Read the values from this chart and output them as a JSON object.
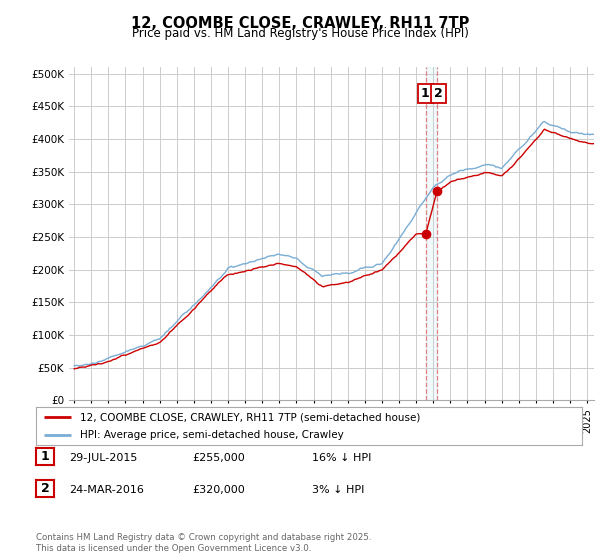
{
  "title": "12, COOMBE CLOSE, CRAWLEY, RH11 7TP",
  "subtitle": "Price paid vs. HM Land Registry's House Price Index (HPI)",
  "legend_line1": "12, COOMBE CLOSE, CRAWLEY, RH11 7TP (semi-detached house)",
  "legend_line2": "HPI: Average price, semi-detached house, Crawley",
  "sale1_date": "29-JUL-2015",
  "sale1_price": "£255,000",
  "sale1_hpi": "16% ↓ HPI",
  "sale2_date": "24-MAR-2016",
  "sale2_price": "£320,000",
  "sale2_hpi": "3% ↓ HPI",
  "sale1_x": 2015.57,
  "sale1_y": 255000,
  "sale2_x": 2016.23,
  "sale2_y": 320000,
  "footer": "Contains HM Land Registry data © Crown copyright and database right 2025.\nThis data is licensed under the Open Government Licence v3.0.",
  "red_color": "#cc0000",
  "blue_color": "#7aadd4",
  "background_color": "#ffffff",
  "grid_color": "#cccccc",
  "ylim": [
    0,
    510000
  ],
  "xlim": [
    1994.7,
    2025.4
  ]
}
